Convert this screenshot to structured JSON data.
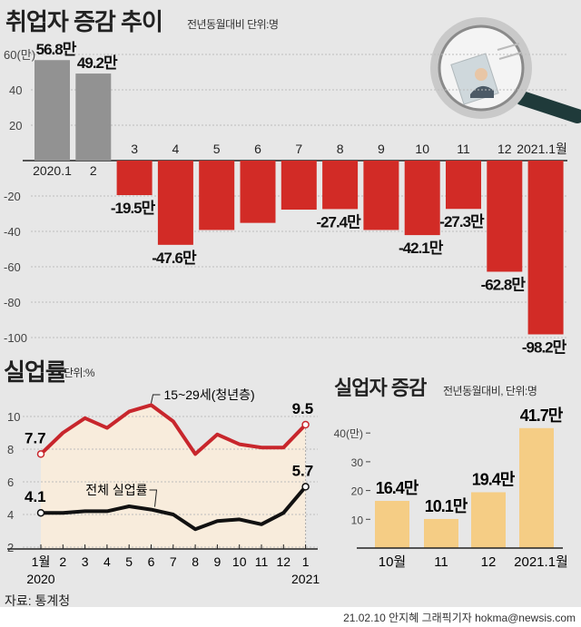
{
  "employment": {
    "title": "취업자 증감 추이",
    "subtitle": "전년동월대비 단위:명"
  },
  "unemployment_rate": {
    "title": "실업률",
    "subtitle": "단위:%"
  },
  "unemployed": {
    "title": "실업자 증감",
    "subtitle": "전년동월대비, 단위:명"
  },
  "source": "자료: 통계청",
  "credit": "21.02.10 안지혜 그래픽기자 hokma@newsis.com",
  "colors": {
    "gray_bar": "#929292",
    "red_bar": "#d22b26",
    "youth_line": "#c8262c",
    "total_line": "#111111",
    "yellow_bar": "#f5cd85",
    "plot_fill": "#f8ecdc"
  },
  "chart_data": [
    {
      "type": "bar",
      "title": "취업자 증감 추이",
      "unit": "만 명",
      "categories": [
        "2020.1",
        "2",
        "3",
        "4",
        "5",
        "6",
        "7",
        "8",
        "9",
        "10",
        "11",
        "12",
        "2021.1월"
      ],
      "values": [
        56.8,
        49.2,
        -19.5,
        -47.6,
        -39.2,
        -35.2,
        -27.7,
        -27.4,
        -39.2,
        -42.1,
        -27.3,
        -62.8,
        -98.2
      ],
      "data_labels": [
        "56.8만",
        "49.2만",
        "-19.5만",
        "-47.6만",
        null,
        null,
        null,
        "-27.4만",
        null,
        "-42.1만",
        "-27.3만",
        "-62.8만",
        "-98.2만"
      ],
      "yticks": [
        "60(만)",
        "40",
        "20",
        "-20",
        "-40",
        "-60",
        "-80",
        "-100"
      ],
      "ytick_values": [
        60,
        40,
        20,
        -20,
        -40,
        -60,
        -80,
        -100
      ],
      "ylim": [
        -100,
        60
      ],
      "grid": true
    },
    {
      "type": "line",
      "title": "실업률",
      "categories": [
        "1월",
        "2",
        "3",
        "4",
        "5",
        "6",
        "7",
        "8",
        "9",
        "10",
        "11",
        "12",
        "1"
      ],
      "year_labels": [
        "2020",
        "2021"
      ],
      "series": [
        {
          "name": "15~29세(청년층)",
          "values": [
            7.7,
            9.0,
            9.9,
            9.3,
            10.3,
            10.7,
            9.7,
            7.7,
            8.9,
            8.3,
            8.1,
            8.1,
            9.5
          ],
          "labels": [
            "7.7",
            "9.5"
          ]
        },
        {
          "name": "전체 실업률",
          "values": [
            4.1,
            4.1,
            4.2,
            4.2,
            4.5,
            4.3,
            4.0,
            3.1,
            3.6,
            3.7,
            3.4,
            4.1,
            5.7
          ],
          "labels": [
            "4.1",
            "5.7"
          ]
        }
      ],
      "yticks": [
        "10",
        "8",
        "6",
        "4",
        "2"
      ],
      "ytick_values": [
        10,
        8,
        6,
        4,
        2
      ],
      "ylim": [
        2,
        11
      ],
      "grid": true
    },
    {
      "type": "bar",
      "title": "실업자 증감",
      "categories": [
        "10월",
        "11",
        "12",
        "2021.1월"
      ],
      "values": [
        16.4,
        10.1,
        19.4,
        41.7
      ],
      "data_labels": [
        "16.4만",
        "10.1만",
        "19.4만",
        "41.7만"
      ],
      "yticks": [
        "40(만)",
        "30",
        "20",
        "10"
      ],
      "ytick_values": [
        40,
        30,
        20,
        10
      ],
      "ylim": [
        0,
        45
      ]
    }
  ]
}
